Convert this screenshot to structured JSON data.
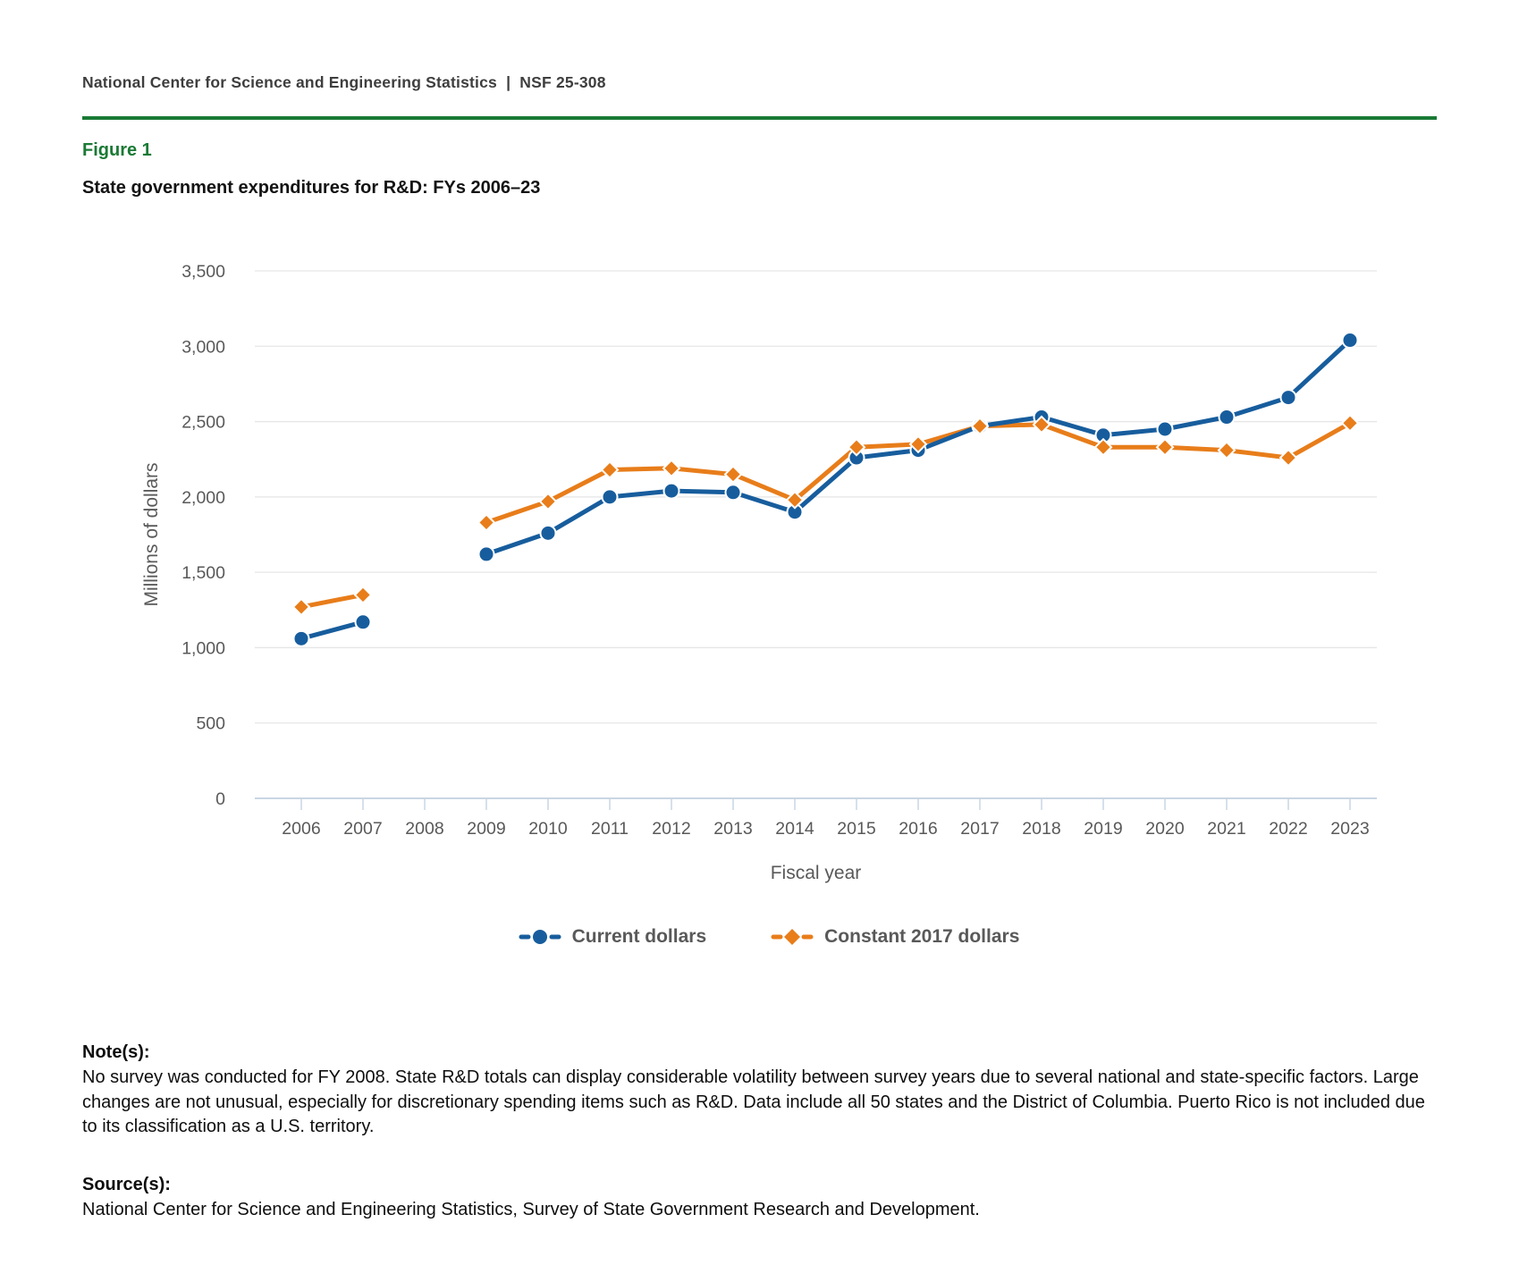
{
  "header": {
    "text": "National Center for Science and Engineering Statistics  |  NSF 25-308"
  },
  "figure_label": "Figure 1",
  "chart_data": {
    "type": "line",
    "title": "State government expenditures for R&D: FYs 2006–23",
    "xlabel": "Fiscal year",
    "ylabel": "Millions of dollars",
    "ylim": [
      0,
      3500
    ],
    "grid": true,
    "legend_position": "bottom",
    "note": "No data for 2008 (no survey conducted); lines have a gap at that year",
    "x": [
      2006,
      2007,
      2008,
      2009,
      2010,
      2011,
      2012,
      2013,
      2014,
      2015,
      2016,
      2017,
      2018,
      2019,
      2020,
      2021,
      2022,
      2023
    ],
    "yticks": [
      {
        "value": 0,
        "label": "0"
      },
      {
        "value": 500,
        "label": "500"
      },
      {
        "value": 1000,
        "label": "1,000"
      },
      {
        "value": 1500,
        "label": "1,500"
      },
      {
        "value": 2000,
        "label": "2,000"
      },
      {
        "value": 2500,
        "label": "2,500"
      },
      {
        "value": 3000,
        "label": "3,000"
      },
      {
        "value": 3500,
        "label": "3,500"
      }
    ],
    "series": [
      {
        "name": "Current dollars",
        "color": "#175d9d",
        "marker": "circle",
        "values": [
          1060,
          1170,
          null,
          1620,
          1760,
          2000,
          2040,
          2030,
          1900,
          2260,
          2310,
          2470,
          2530,
          2410,
          2450,
          2530,
          2660,
          3040
        ]
      },
      {
        "name": "Constant 2017 dollars",
        "color": "#e87d1a",
        "marker": "diamond",
        "values": [
          1270,
          1350,
          null,
          1830,
          1970,
          2180,
          2190,
          2150,
          1980,
          2330,
          2350,
          2470,
          2480,
          2330,
          2330,
          2310,
          2260,
          2490
        ]
      }
    ]
  },
  "notes": {
    "heading": "Note(s):",
    "body": "No survey was conducted for FY 2008. State R&D totals can display considerable volatility between survey years due to several national and state-specific factors. Large changes are not unusual, especially for discretionary spending items such as R&D. Data include all 50 states and the District of Columbia. Puerto Rico is not included due to its classification as a U.S. territory."
  },
  "sources": {
    "heading": "Source(s):",
    "body": "National Center for Science and Engineering Statistics, Survey of State Government Research and Development."
  },
  "colors": {
    "accent_green": "#1a7a35",
    "series_blue": "#175d9d",
    "series_orange": "#e87d1a",
    "axis_text": "#595959",
    "gridline": "#e6e6e6",
    "axis_line": "#c9d6e4"
  }
}
